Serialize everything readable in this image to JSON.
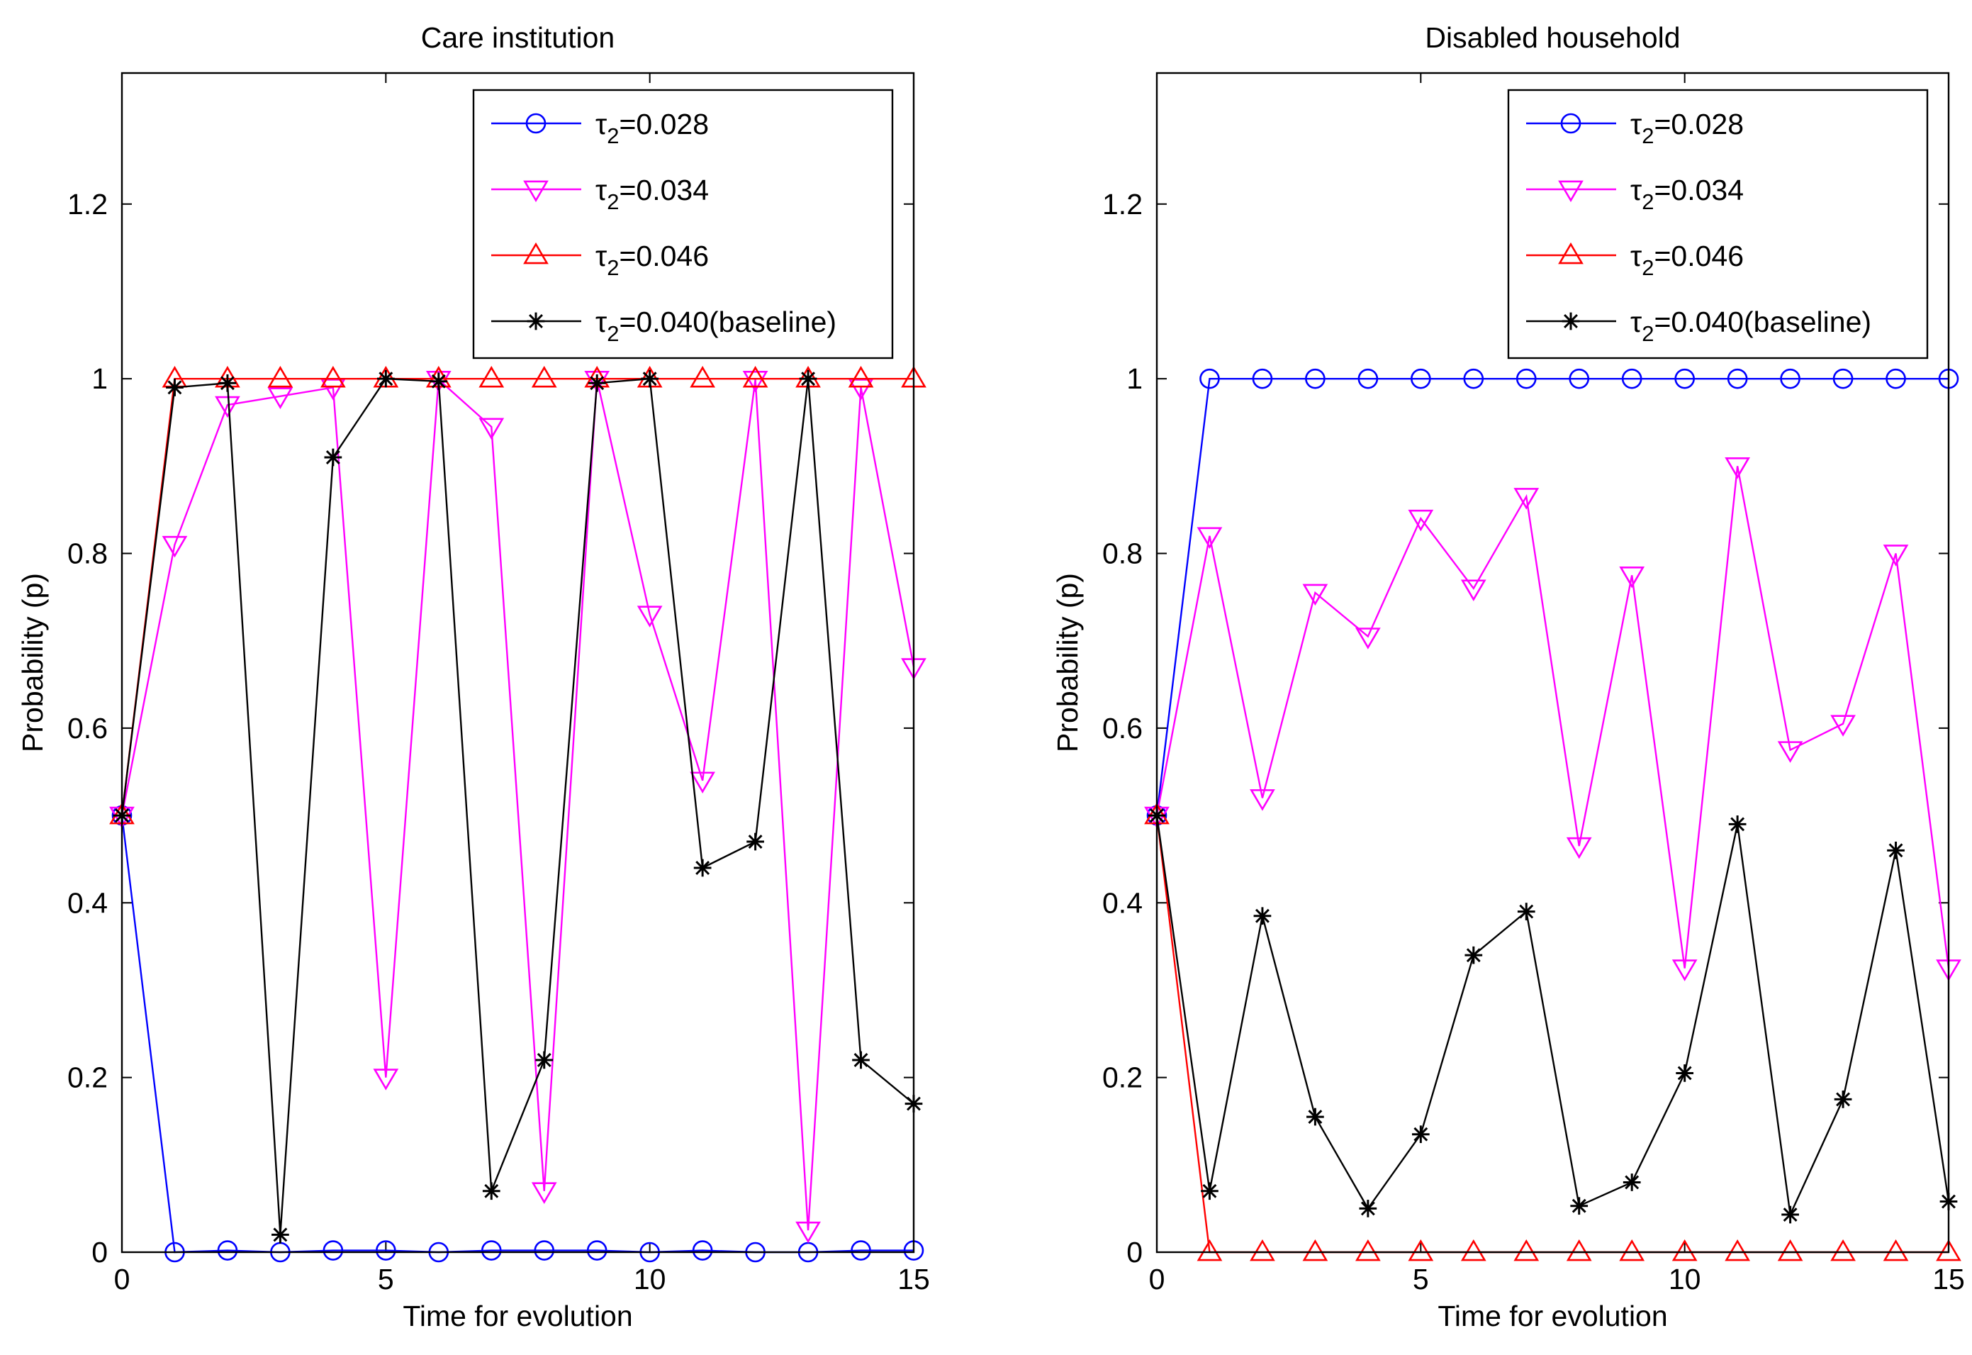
{
  "chart_data": [
    {
      "type": "line",
      "title": "Care institution",
      "xlabel": "Time for evolution",
      "ylabel": "Probability (p)",
      "xlim": [
        0,
        15
      ],
      "ylim": [
        0,
        1.35
      ],
      "xticks": [
        0,
        5,
        10,
        15
      ],
      "xtick_labels": [
        "0",
        "5",
        "10",
        "15"
      ],
      "yticks": [
        0,
        0.2,
        0.4,
        0.6,
        0.8,
        1,
        1.2
      ],
      "ytick_labels": [
        "0",
        "0.2",
        "0.4",
        "0.6",
        "0.8",
        "1",
        "1.2"
      ],
      "grid": false,
      "legend_position": "top-right",
      "x": [
        0,
        1,
        2,
        3,
        4,
        5,
        6,
        7,
        8,
        9,
        10,
        11,
        12,
        13,
        14,
        15
      ],
      "series": [
        {
          "name": "τ2=0.028",
          "symbol": "τ",
          "subscript": "2",
          "value_text": "=0.028",
          "color": "#0000ff",
          "marker": "circle",
          "values": [
            0.5,
            0.0,
            0.002,
            0.0,
            0.002,
            0.002,
            0.0,
            0.002,
            0.002,
            0.002,
            0.0,
            0.002,
            0.0,
            0.0,
            0.002,
            0.002
          ]
        },
        {
          "name": "τ2=0.034",
          "symbol": "τ",
          "subscript": "2",
          "value_text": "=0.034",
          "color": "#ff00ff",
          "marker": "triangle-down",
          "values": [
            0.5,
            0.81,
            0.97,
            0.98,
            0.99,
            0.2,
            0.999,
            0.945,
            0.07,
            0.999,
            0.73,
            0.54,
            0.999,
            0.025,
            0.99,
            0.67
          ]
        },
        {
          "name": "τ2=0.046",
          "symbol": "τ",
          "subscript": "2",
          "value_text": "=0.046",
          "color": "#ff0000",
          "marker": "triangle-up",
          "values": [
            0.5,
            1,
            1,
            1,
            1,
            1,
            1,
            1,
            1,
            1,
            1,
            1,
            1,
            1,
            1,
            1
          ]
        },
        {
          "name": "τ2=0.040(baseline)",
          "symbol": "τ",
          "subscript": "2",
          "value_text": "=0.040(baseline)",
          "color": "#000000",
          "marker": "star",
          "values": [
            0.5,
            0.99,
            0.995,
            0.02,
            0.91,
            1.0,
            0.997,
            0.07,
            0.22,
            0.995,
            1.0,
            0.44,
            0.47,
            1.0,
            0.22,
            0.17
          ]
        }
      ]
    },
    {
      "type": "line",
      "title": "Disabled household",
      "xlabel": "Time for evolution",
      "ylabel": "Probability (p)",
      "xlim": [
        0,
        15
      ],
      "ylim": [
        0,
        1.35
      ],
      "xticks": [
        0,
        5,
        10,
        15
      ],
      "xtick_labels": [
        "0",
        "5",
        "10",
        "15"
      ],
      "yticks": [
        0,
        0.2,
        0.4,
        0.6,
        0.8,
        1,
        1.2
      ],
      "ytick_labels": [
        "0",
        "0.2",
        "0.4",
        "0.6",
        "0.8",
        "1",
        "1.2"
      ],
      "grid": false,
      "legend_position": "top-right",
      "x": [
        0,
        1,
        2,
        3,
        4,
        5,
        6,
        7,
        8,
        9,
        10,
        11,
        12,
        13,
        14,
        15
      ],
      "series": [
        {
          "name": "τ2=0.028",
          "symbol": "τ",
          "subscript": "2",
          "value_text": "=0.028",
          "color": "#0000ff",
          "marker": "circle",
          "values": [
            0.5,
            1,
            1,
            1,
            1,
            1,
            1,
            1,
            1,
            1,
            1,
            1,
            1,
            1,
            1,
            1
          ]
        },
        {
          "name": "τ2=0.034",
          "symbol": "τ",
          "subscript": "2",
          "value_text": "=0.034",
          "color": "#ff00ff",
          "marker": "triangle-down",
          "values": [
            0.5,
            0.82,
            0.52,
            0.755,
            0.705,
            0.84,
            0.76,
            0.865,
            0.465,
            0.775,
            0.325,
            0.9,
            0.575,
            0.605,
            0.8,
            0.325
          ]
        },
        {
          "name": "τ2=0.046",
          "symbol": "τ",
          "subscript": "2",
          "value_text": "=0.046",
          "color": "#ff0000",
          "marker": "triangle-up",
          "values": [
            0.5,
            0,
            0,
            0,
            0,
            0,
            0,
            0,
            0,
            0,
            0,
            0,
            0,
            0,
            0,
            0
          ]
        },
        {
          "name": "τ2=0.040(baseline)",
          "symbol": "τ",
          "subscript": "2",
          "value_text": "=0.040(baseline)",
          "color": "#000000",
          "marker": "star",
          "values": [
            0.5,
            0.07,
            0.385,
            0.155,
            0.05,
            0.135,
            0.34,
            0.39,
            0.053,
            0.08,
            0.205,
            0.49,
            0.043,
            0.175,
            0.46,
            0.058
          ]
        }
      ]
    }
  ]
}
